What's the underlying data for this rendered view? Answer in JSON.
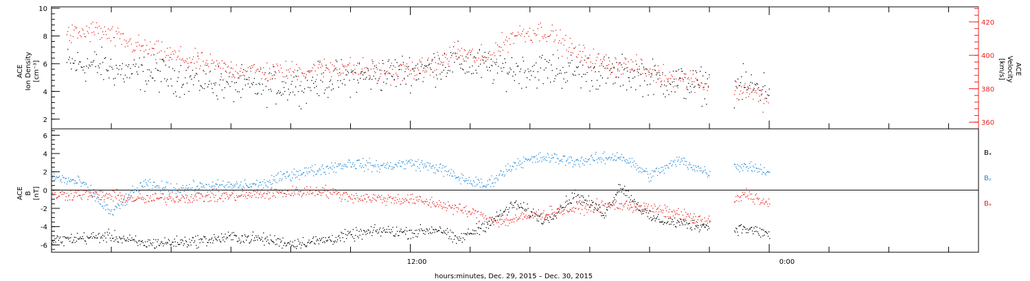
{
  "xlabel": "hours:minutes, Dec. 29, 2015 – Dec. 30, 2015",
  "x_ticks": [
    "12:00",
    "0:00"
  ],
  "colors": {
    "black": "#000000",
    "red": "#e8201c",
    "blue": "#1e88d8"
  },
  "chart_data": [
    {
      "type": "scatter",
      "panel": "top",
      "ylabel_lines": [
        "ACE",
        "Ion Density",
        "[cm⁻³]"
      ],
      "y2label_lines": [
        "ACE",
        "Velocity",
        "[km/s]"
      ],
      "xlim": [
        -24,
        7
      ],
      "ylim": [
        1.3,
        10.1
      ],
      "y2lim": [
        356,
        429
      ],
      "y_ticks": [
        2,
        4,
        6,
        8,
        10
      ],
      "y2_ticks": [
        360,
        380,
        400,
        420
      ],
      "series": [
        {
          "axis": "left",
          "color": "black",
          "gaps": [
            [
              -2.0,
              -1.2
            ]
          ],
          "points": [
            [
              -23.5,
              6.0
            ],
            [
              -22.5,
              5.9
            ],
            [
              -21.5,
              5.4
            ],
            [
              -20.5,
              5.3
            ],
            [
              -19.5,
              5.0
            ],
            [
              -18.5,
              4.7
            ],
            [
              -17.5,
              4.4
            ],
            [
              -16.5,
              4.4
            ],
            [
              -15.5,
              4.6
            ],
            [
              -14.5,
              5.0
            ],
            [
              -13.5,
              5.1
            ],
            [
              -12.5,
              5.4
            ],
            [
              -11.5,
              5.7
            ],
            [
              -10.5,
              6.2
            ],
            [
              -9.5,
              5.8
            ],
            [
              -8.5,
              5.6
            ],
            [
              -7.5,
              5.6
            ],
            [
              -6.5,
              5.5
            ],
            [
              -5.5,
              5.3
            ],
            [
              -4.5,
              5.3
            ],
            [
              -3.5,
              4.8
            ],
            [
              -2.5,
              4.5
            ],
            [
              -0.8,
              4.4
            ],
            [
              0.0,
              4.3
            ]
          ]
        },
        {
          "axis": "right",
          "color": "red",
          "gaps": [
            [
              -2.0,
              -1.2
            ]
          ],
          "points": [
            [
              -23.5,
              412
            ],
            [
              -22.5,
              415
            ],
            [
              -21.5,
              408
            ],
            [
              -20.5,
              402
            ],
            [
              -19.5,
              398
            ],
            [
              -18.5,
              393
            ],
            [
              -17.5,
              391
            ],
            [
              -16.5,
              390
            ],
            [
              -15.5,
              391
            ],
            [
              -14.5,
              393
            ],
            [
              -13.5,
              392
            ],
            [
              -12.5,
              390
            ],
            [
              -11.5,
              392
            ],
            [
              -10.5,
              402
            ],
            [
              -9.5,
              398
            ],
            [
              -8.5,
              413
            ],
            [
              -7.5,
              415
            ],
            [
              -6.5,
              402
            ],
            [
              -5.5,
              395
            ],
            [
              -4.5,
              393
            ],
            [
              -3.5,
              388
            ],
            [
              -2.5,
              386
            ],
            [
              -2.1,
              382
            ],
            [
              -0.8,
              380
            ],
            [
              0.0,
              372
            ]
          ]
        }
      ]
    },
    {
      "type": "scatter",
      "panel": "bottom",
      "ylabel_lines": [
        "ACE",
        "B",
        "[nT]"
      ],
      "xlim": [
        -24,
        7
      ],
      "ylim": [
        -6.8,
        6.7
      ],
      "y_ticks": [
        -6,
        -4,
        -2,
        0,
        2,
        4,
        6
      ],
      "legend": "right",
      "zero_line": true,
      "series": [
        {
          "name": "Bₓ",
          "color": "black",
          "gaps": [
            [
              -2.0,
              -1.2
            ]
          ],
          "points": [
            [
              -24.0,
              -5.5
            ],
            [
              -23.0,
              -5.2
            ],
            [
              -22.0,
              -5.0
            ],
            [
              -21.0,
              -5.8
            ],
            [
              -20.0,
              -5.7
            ],
            [
              -19.0,
              -5.5
            ],
            [
              -18.0,
              -5.1
            ],
            [
              -17.0,
              -5.3
            ],
            [
              -16.0,
              -5.8
            ],
            [
              -15.0,
              -5.5
            ],
            [
              -14.0,
              -4.9
            ],
            [
              -13.0,
              -4.4
            ],
            [
              -12.0,
              -4.6
            ],
            [
              -11.0,
              -4.2
            ],
            [
              -10.5,
              -5.5
            ],
            [
              -9.5,
              -3.8
            ],
            [
              -8.5,
              -1.5
            ],
            [
              -7.5,
              -3.3
            ],
            [
              -6.5,
              -0.5
            ],
            [
              -5.5,
              -2.5
            ],
            [
              -5.0,
              0.5
            ],
            [
              -4.0,
              -3.0
            ],
            [
              -3.0,
              -3.6
            ],
            [
              -2.1,
              -3.9
            ],
            [
              -0.8,
              -4.2
            ],
            [
              0.0,
              -4.8
            ]
          ]
        },
        {
          "name": "Bᵧ",
          "color": "blue",
          "gaps": [
            [
              -2.0,
              -1.2
            ]
          ],
          "points": [
            [
              -24.0,
              1.5
            ],
            [
              -23.0,
              0.8
            ],
            [
              -22.0,
              -2.5
            ],
            [
              -21.0,
              0.6
            ],
            [
              -20.0,
              0.2
            ],
            [
              -19.0,
              0.4
            ],
            [
              -18.0,
              0.5
            ],
            [
              -17.0,
              0.6
            ],
            [
              -16.0,
              1.8
            ],
            [
              -15.0,
              2.3
            ],
            [
              -14.0,
              3.0
            ],
            [
              -13.0,
              2.6
            ],
            [
              -12.0,
              3.0
            ],
            [
              -11.0,
              2.4
            ],
            [
              -10.5,
              1.5
            ],
            [
              -9.5,
              0.5
            ],
            [
              -8.5,
              3.0
            ],
            [
              -7.5,
              3.6
            ],
            [
              -6.5,
              3.2
            ],
            [
              -5.5,
              3.5
            ],
            [
              -5.0,
              3.8
            ],
            [
              -4.0,
              1.6
            ],
            [
              -3.0,
              3.3
            ],
            [
              -2.1,
              2.0
            ],
            [
              -0.8,
              2.8
            ],
            [
              0.0,
              2.0
            ]
          ]
        },
        {
          "name": "Bₔ",
          "color": "red",
          "gaps": [
            [
              -2.0,
              -1.2
            ]
          ],
          "points": [
            [
              -24.0,
              -0.5
            ],
            [
              -23.0,
              -0.4
            ],
            [
              -22.0,
              -0.6
            ],
            [
              -21.0,
              -1.0
            ],
            [
              -20.0,
              -0.8
            ],
            [
              -19.0,
              -0.7
            ],
            [
              -18.0,
              -0.6
            ],
            [
              -17.0,
              -0.4
            ],
            [
              -16.0,
              -0.2
            ],
            [
              -15.0,
              0.0
            ],
            [
              -14.0,
              -0.7
            ],
            [
              -13.0,
              -0.9
            ],
            [
              -12.0,
              -1.0
            ],
            [
              -11.0,
              -1.5
            ],
            [
              -10.0,
              -2.4
            ],
            [
              -9.0,
              -3.5
            ],
            [
              -8.0,
              -2.8
            ],
            [
              -7.0,
              -2.2
            ],
            [
              -6.0,
              -1.8
            ],
            [
              -5.0,
              -1.6
            ],
            [
              -4.0,
              -2.0
            ],
            [
              -3.0,
              -2.6
            ],
            [
              -2.1,
              -3.5
            ],
            [
              -0.8,
              -0.3
            ],
            [
              0.0,
              -1.6
            ]
          ]
        }
      ]
    }
  ]
}
